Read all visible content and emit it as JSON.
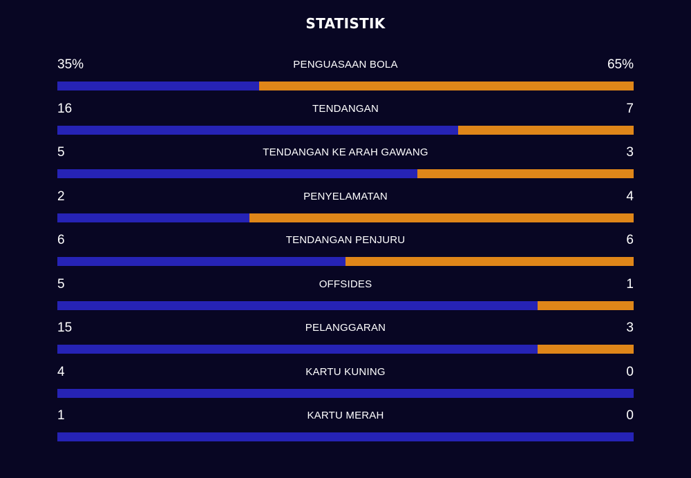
{
  "title": "STATISTIK",
  "colors": {
    "background": "#080623",
    "home": "#2623b5",
    "away": "#df8619",
    "text": "#ffffff"
  },
  "stats": [
    {
      "label": "PENGUASAAN BOLA",
      "home": "35%",
      "away": "65%",
      "home_share": 0.35
    },
    {
      "label": "TENDANGAN",
      "home": "16",
      "away": "7",
      "home_share": 0.695
    },
    {
      "label": "TENDANGAN KE ARAH GAWANG",
      "home": "5",
      "away": "3",
      "home_share": 0.625
    },
    {
      "label": "PENYELAMATAN",
      "home": "2",
      "away": "4",
      "home_share": 0.333
    },
    {
      "label": "TENDANGAN PENJURU",
      "home": "6",
      "away": "6",
      "home_share": 0.5
    },
    {
      "label": "OFFSIDES",
      "home": "5",
      "away": "1",
      "home_share": 0.833
    },
    {
      "label": "PELANGGARAN",
      "home": "15",
      "away": "3",
      "home_share": 0.833
    },
    {
      "label": "KARTU KUNING",
      "home": "4",
      "away": "0",
      "home_share": 1.0
    },
    {
      "label": "KARTU MERAH",
      "home": "1",
      "away": "0",
      "home_share": 1.0
    }
  ]
}
